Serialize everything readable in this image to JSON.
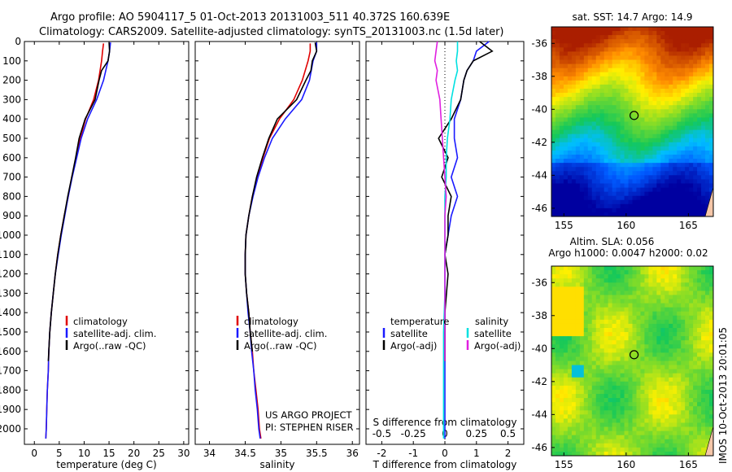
{
  "title_line1": "Argo profile: AO 5904117_5 01-Oct-2013 20131003_511 40.372S 160.639E",
  "title_line2": "Climatology: CARS2009. Satellite-adjusted climatology: synTS_20131003.nc (1.5d later)",
  "colors": {
    "climatology": "#e00000",
    "satellite": "#1a1aff",
    "argo": "#000000",
    "argo_salinity_adj": "#e020e0",
    "satellite_salinity": "#00e0e0"
  },
  "chart_data": [
    {
      "type": "line",
      "panel": "temperature",
      "xlabel": "temperature (deg C)",
      "xlim": [
        -2,
        31
      ],
      "xticks": [
        0,
        5,
        10,
        15,
        20,
        25,
        30
      ],
      "ylim": [
        2080,
        0
      ],
      "yticks": [
        0,
        100,
        200,
        300,
        400,
        500,
        600,
        700,
        800,
        900,
        1000,
        1100,
        1200,
        1300,
        1400,
        1500,
        1600,
        1700,
        1800,
        1900,
        2000
      ],
      "legend": [
        "climatology",
        "satellite-adj. clim.",
        "Argo(..raw -QC)"
      ],
      "series": [
        {
          "name": "climatology",
          "color": "#e00000",
          "x": [
            13.9,
            13.7,
            13.5,
            12.9,
            11.9,
            10.3,
            9.2,
            8.4,
            7.5,
            6.8,
            6.0,
            5.3,
            4.7,
            4.2,
            3.8,
            3.4,
            3.1,
            2.9,
            2.8,
            2.6,
            2.5,
            2.4,
            2.3
          ],
          "y": [
            10,
            50,
            100,
            200,
            300,
            400,
            500,
            600,
            700,
            800,
            900,
            1000,
            1100,
            1200,
            1300,
            1400,
            1500,
            1600,
            1700,
            1800,
            1900,
            2000,
            2050
          ]
        },
        {
          "name": "satellite-adj. clim.",
          "color": "#1a1aff",
          "x": [
            15.3,
            15.1,
            14.8,
            13.9,
            12.5,
            10.7,
            9.4,
            8.5,
            7.6,
            6.8,
            6.1,
            5.4,
            4.8,
            4.2,
            3.8,
            3.4,
            3.1,
            2.9,
            2.8,
            2.6,
            2.5,
            2.4,
            2.3
          ],
          "y": [
            5,
            50,
            100,
            200,
            300,
            400,
            500,
            600,
            700,
            800,
            900,
            1000,
            1100,
            1200,
            1300,
            1400,
            1500,
            1600,
            1700,
            1800,
            1900,
            2000,
            2050
          ]
        },
        {
          "name": "Argo(..raw -QC)",
          "color": "#000000",
          "x": [
            15.0,
            15.1,
            14.8,
            13.5,
            13.0,
            12.2,
            10.2,
            9.0,
            8.3,
            7.5,
            6.7,
            6.0,
            5.3,
            4.7,
            4.2,
            3.8,
            3.4,
            3.1,
            2.9,
            2.8
          ],
          "y": [
            5,
            50,
            100,
            150,
            200,
            300,
            400,
            500,
            600,
            700,
            800,
            900,
            1000,
            1100,
            1200,
            1300,
            1400,
            1500,
            1600,
            1650
          ]
        }
      ]
    },
    {
      "type": "line",
      "panel": "salinity",
      "xlabel": "salinity",
      "xlim": [
        33.8,
        36.1
      ],
      "xticks": [
        34,
        34.5,
        35,
        35.5,
        36
      ],
      "ylim": [
        2080,
        0
      ],
      "legend": [
        "climatology",
        "satellite-adj. clim.",
        "Argo(..raw -QC)"
      ],
      "series": [
        {
          "name": "climatology",
          "color": "#e00000",
          "x": [
            35.41,
            35.41,
            35.38,
            35.3,
            35.18,
            34.98,
            34.84,
            34.75,
            34.67,
            34.6,
            34.55,
            34.51,
            34.5,
            34.5,
            34.52,
            34.55,
            34.57,
            34.6,
            34.62,
            34.65,
            34.68,
            34.7,
            34.72
          ],
          "y": [
            10,
            50,
            100,
            200,
            300,
            400,
            500,
            600,
            700,
            800,
            900,
            1000,
            1100,
            1200,
            1300,
            1400,
            1500,
            1600,
            1700,
            1800,
            1900,
            2000,
            2050
          ]
        },
        {
          "name": "satellite-adj. clim.",
          "color": "#1a1aff",
          "x": [
            35.5,
            35.5,
            35.45,
            35.4,
            35.29,
            35.06,
            34.88,
            34.77,
            34.68,
            34.61,
            34.55,
            34.51,
            34.5,
            34.5,
            34.52,
            34.54,
            34.57,
            34.59,
            34.62,
            34.64,
            34.67,
            34.69,
            34.71
          ],
          "y": [
            5,
            50,
            100,
            200,
            300,
            400,
            500,
            600,
            700,
            800,
            900,
            1000,
            1100,
            1200,
            1300,
            1400,
            1500,
            1600,
            1700,
            1800,
            1900,
            2000,
            2050
          ]
        },
        {
          "name": "Argo(..raw -QC)",
          "color": "#000000",
          "x": [
            35.48,
            35.5,
            35.44,
            35.42,
            35.35,
            35.22,
            34.95,
            34.83,
            34.74,
            34.66,
            34.6,
            34.55,
            34.51,
            34.5,
            34.5,
            34.52,
            34.55,
            34.57,
            34.6
          ],
          "y": [
            5,
            50,
            100,
            150,
            200,
            300,
            400,
            500,
            600,
            700,
            800,
            900,
            1000,
            1100,
            1200,
            1300,
            1400,
            1500,
            1600
          ]
        }
      ]
    },
    {
      "type": "line",
      "panel": "difference",
      "xlabel": "T difference from climatology",
      "xlabel_top": "S difference from climatology",
      "xlim": [
        -2.5,
        2.5
      ],
      "xticks": [
        -2,
        -1,
        0,
        1,
        2
      ],
      "xticks_top": [
        -0.5,
        -0.25,
        0,
        0.25,
        0.5
      ],
      "xticklabels_top": [
        "-0.5",
        "-0.25",
        "0",
        "0.25",
        "0.5"
      ],
      "ylim": [
        2080,
        0
      ],
      "legend_temperature": [
        "temperature",
        "satellite",
        "Argo(-adj)"
      ],
      "legend_salinity": [
        "salinity",
        "satellite",
        "Argo(-adj)"
      ],
      "series": [
        {
          "name": "temperature satellite",
          "color": "#1a1aff",
          "x": [
            1.4,
            1.0,
            0.9,
            0.7,
            0.6,
            0.5,
            0.3,
            0.3,
            0.4,
            0.2,
            0.4,
            0.2,
            0.1,
            0.0,
            0.0,
            0.0,
            0.0,
            0.0,
            0.0
          ],
          "y": [
            0,
            50,
            100,
            150,
            200,
            300,
            400,
            500,
            600,
            700,
            800,
            900,
            1000,
            1100,
            1200,
            1300,
            1500,
            1700,
            2050
          ]
        },
        {
          "name": "temperature Argo(-adj)",
          "color": "#000000",
          "x": [
            1.1,
            1.5,
            0.9,
            0.7,
            0.6,
            0.5,
            0.2,
            -0.2,
            0.1,
            -0.1,
            0.2,
            0.1,
            0.1,
            0.0,
            0.1,
            0.0,
            0.0
          ],
          "y": [
            0,
            50,
            100,
            150,
            200,
            300,
            400,
            500,
            600,
            700,
            800,
            900,
            1000,
            1100,
            1200,
            1400,
            1650
          ]
        },
        {
          "name": "salinity satellite",
          "color": "#00e0e0",
          "x": [
            0.1,
            0.1,
            0.09,
            0.1,
            0.08,
            0.05,
            0.04,
            0.02,
            0.01,
            0.01,
            0.0,
            0.0,
            0.0,
            0.0,
            0.0,
            0.0,
            -0.01,
            -0.01,
            -0.01
          ],
          "y": [
            0,
            50,
            100,
            150,
            200,
            300,
            400,
            500,
            600,
            700,
            800,
            900,
            1000,
            1100,
            1200,
            1300,
            1500,
            1700,
            2050
          ]
        },
        {
          "name": "salinity Argo(-adj)",
          "color": "#e020e0",
          "x": [
            -0.06,
            -0.07,
            -0.08,
            -0.06,
            -0.07,
            -0.04,
            -0.03,
            -0.02,
            -0.01,
            0.0,
            0.01,
            0.0,
            0.0,
            0.0,
            0.0,
            0.0,
            0.0
          ],
          "y": [
            0,
            50,
            100,
            150,
            200,
            300,
            400,
            500,
            600,
            700,
            800,
            900,
            1000,
            1100,
            1200,
            1400,
            1650
          ]
        }
      ]
    },
    {
      "type": "heatmap",
      "panel": "sst_map",
      "title": "sat. SST: 14.7  Argo: 14.9",
      "xlim": [
        154,
        167
      ],
      "ylim": [
        -46.5,
        -35
      ],
      "xticks": [
        155,
        160,
        165
      ],
      "yticks": [
        -36,
        -38,
        -40,
        -42,
        -44,
        -46
      ],
      "marker": {
        "lon": 160.639,
        "lat": -40.372
      }
    },
    {
      "type": "heatmap",
      "panel": "sla_map",
      "title_line1": "Altim. SLA: 0.056",
      "title_line2": "Argo h1000: 0.0047 h2000: 0.02",
      "xlim": [
        154,
        167
      ],
      "ylim": [
        -46.5,
        -35
      ],
      "xticks": [
        155,
        160,
        165
      ],
      "yticks": [
        -36,
        -38,
        -40,
        -42,
        -44,
        -46
      ],
      "marker": {
        "lon": 160.639,
        "lat": -40.372
      }
    }
  ],
  "annotation_line1": "US ARGO PROJECT",
  "annotation_line2": "PI: STEPHEN RISER",
  "side_label": "IMOS 10-Oct-2013 20:01:05"
}
